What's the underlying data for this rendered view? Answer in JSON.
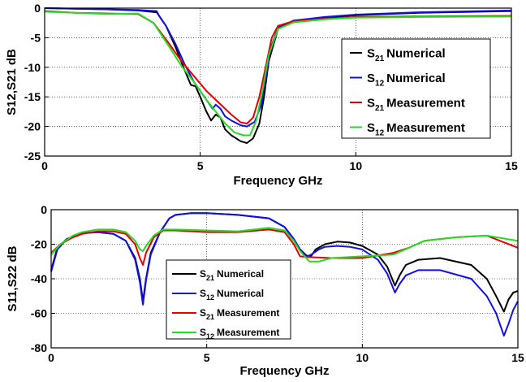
{
  "chart_data": [
    {
      "type": "line",
      "xlabel": "Frequency GHz",
      "ylabel": "S12,S21 dB",
      "xlim": [
        0,
        15
      ],
      "ylim": [
        -25,
        0
      ],
      "xticks": [
        "0",
        "5",
        "10",
        "15"
      ],
      "yticks": [
        "0",
        "-5",
        "-10",
        "-15",
        "-20",
        "-25"
      ],
      "grid": "on",
      "legend_placement": "right",
      "series": [
        {
          "name_main": "S",
          "name_sub": "21",
          "name_rest": "Numerical",
          "color": "#000000",
          "x": [
            0,
            1,
            2,
            3,
            3.6,
            3.9,
            4.2,
            4.5,
            4.7,
            4.85,
            5.0,
            5.2,
            5.35,
            5.5,
            5.65,
            5.8,
            6.0,
            6.3,
            6.5,
            6.7,
            6.9,
            7.05,
            7.2,
            7.5,
            8,
            9,
            10,
            12,
            15
          ],
          "y": [
            0,
            -0.1,
            -0.2,
            -0.4,
            -0.7,
            -3,
            -6.5,
            -10.5,
            -13,
            -13.2,
            -15,
            -17.5,
            -19,
            -18,
            -18.5,
            -20.5,
            -21.5,
            -22.5,
            -22.8,
            -22,
            -19.5,
            -15,
            -9,
            -3.5,
            -2.3,
            -1.6,
            -1.2,
            -0.8,
            -0.5
          ]
        },
        {
          "name_main": "S",
          "name_sub": "12",
          "name_rest": "Numerical",
          "color": "#1010e6",
          "x": [
            0,
            1,
            2,
            3,
            3.6,
            3.7,
            3.9,
            4.2,
            4.5,
            4.8,
            5.0,
            5.2,
            5.4,
            5.5,
            5.65,
            5.8,
            6.0,
            6.3,
            6.5,
            6.75,
            6.95,
            7.1,
            7.25,
            7.5,
            8,
            9,
            10,
            12,
            15
          ],
          "y": [
            0,
            -0.1,
            -0.2,
            -0.3,
            -0.5,
            -1.5,
            -3,
            -6,
            -9.5,
            -12.5,
            -14,
            -15.5,
            -17,
            -16.3,
            -17,
            -18.3,
            -19,
            -19.8,
            -20,
            -19.2,
            -16.5,
            -12,
            -7,
            -3.3,
            -2.1,
            -1.5,
            -1.1,
            -0.7,
            -0.4
          ]
        },
        {
          "name_main": "S",
          "name_sub": "21",
          "name_rest": "Measurement",
          "color": "#e60000",
          "x": [
            0,
            1,
            2,
            3,
            3.5,
            4,
            4.4,
            4.8,
            5.2,
            5.6,
            6,
            6.3,
            6.5,
            6.7,
            6.9,
            7.1,
            7.3,
            7.5,
            8,
            9,
            10,
            12,
            15
          ],
          "y": [
            -0.5,
            -0.8,
            -0.9,
            -1,
            -2.5,
            -6,
            -9,
            -11.5,
            -14,
            -16,
            -18,
            -19.3,
            -19.5,
            -18.5,
            -15,
            -10,
            -5,
            -3,
            -2.2,
            -1.8,
            -1.5,
            -1.4,
            -1.3
          ]
        },
        {
          "name_main": "S",
          "name_sub": "12",
          "name_rest": "Measurement",
          "color": "#22dd22",
          "x": [
            0,
            1,
            2,
            3,
            3.5,
            4,
            4.4,
            4.8,
            5.2,
            5.5,
            5.8,
            6.1,
            6.4,
            6.6,
            6.8,
            7.0,
            7.2,
            7.5,
            8,
            9,
            10,
            12,
            15
          ],
          "y": [
            -0.6,
            -0.8,
            -1,
            -0.9,
            -2.5,
            -6.5,
            -9.8,
            -12.5,
            -15.5,
            -17.5,
            -19.5,
            -21,
            -21.5,
            -21.5,
            -19,
            -14,
            -8,
            -3.5,
            -2.4,
            -1.9,
            -1.6,
            -1.5,
            -1.4
          ]
        }
      ]
    },
    {
      "type": "line",
      "xlabel": "Frequency GHz",
      "ylabel": "S11,S22 dB",
      "xlim": [
        0,
        15
      ],
      "ylim": [
        -80,
        0
      ],
      "xticks": [
        "0",
        "5",
        "10",
        "15"
      ],
      "yticks": [
        "0",
        "-20",
        "-40",
        "-60",
        "-80"
      ],
      "grid": "on",
      "legend_placement": "left",
      "series": [
        {
          "name_main": "S",
          "name_sub": "21",
          "name_rest": "Numerical",
          "color": "#000000",
          "x": [
            0,
            0.2,
            0.5,
            1,
            1.5,
            2,
            2.4,
            2.7,
            2.85,
            2.95,
            3.05,
            3.2,
            3.5,
            3.8,
            4,
            4.5,
            5,
            6,
            7,
            7.5,
            7.8,
            8,
            8.2,
            8.35,
            8.5,
            8.8,
            9.2,
            9.6,
            10,
            10.5,
            10.8,
            11.05,
            11.2,
            11.4,
            11.8,
            12.5,
            13.5,
            14,
            14.3,
            14.55,
            14.7,
            14.85,
            15
          ],
          "y": [
            -35,
            -22,
            -17,
            -13.5,
            -13,
            -14,
            -18,
            -28,
            -40,
            -53,
            -40,
            -25,
            -13,
            -5,
            -3,
            -2,
            -2,
            -3,
            -5,
            -10,
            -17,
            -23,
            -26.5,
            -27,
            -23,
            -20,
            -18.5,
            -19,
            -21,
            -26,
            -33,
            -44,
            -38,
            -32,
            -29,
            -28,
            -32,
            -40,
            -50,
            -59,
            -52,
            -48,
            -47
          ]
        },
        {
          "name_main": "S",
          "name_sub": "12",
          "name_rest": "Numerical",
          "color": "#1010e6",
          "x": [
            0,
            0.2,
            0.5,
            1,
            1.5,
            2,
            2.4,
            2.7,
            2.85,
            2.95,
            3.05,
            3.2,
            3.5,
            3.8,
            4,
            4.5,
            5,
            6,
            7,
            7.5,
            7.8,
            8,
            8.2,
            8.4,
            8.6,
            8.8,
            9.2,
            9.6,
            10,
            10.5,
            10.8,
            11.05,
            11.2,
            11.4,
            11.8,
            12.5,
            13.5,
            14,
            14.3,
            14.55,
            14.7,
            14.85,
            15
          ],
          "y": [
            -36,
            -23,
            -17,
            -13.5,
            -13,
            -14,
            -18,
            -29,
            -42,
            -55,
            -41,
            -26,
            -13,
            -5,
            -3,
            -2,
            -2,
            -3,
            -5,
            -10,
            -17,
            -23,
            -27.5,
            -25.5,
            -23,
            -21.5,
            -21,
            -21.5,
            -23,
            -29,
            -37,
            -48,
            -43,
            -38,
            -35,
            -35,
            -40,
            -50,
            -60,
            -73,
            -66,
            -58,
            -53
          ]
        },
        {
          "name_main": "S",
          "name_sub": "21",
          "name_rest": "Measurement",
          "color": "#e60000",
          "x": [
            0,
            0.3,
            0.7,
            1,
            1.5,
            2,
            2.4,
            2.7,
            2.85,
            2.95,
            3.05,
            3.3,
            3.6,
            4,
            5,
            6,
            7,
            7.5,
            7.8,
            8,
            8.3,
            9,
            10,
            11,
            11.5,
            12,
            13,
            14,
            15
          ],
          "y": [
            -25,
            -20,
            -16,
            -14,
            -12.5,
            -12.5,
            -14,
            -20,
            -28,
            -32,
            -25,
            -16,
            -12,
            -12,
            -13,
            -13,
            -11.5,
            -13,
            -20,
            -27,
            -27.5,
            -28,
            -28,
            -25,
            -22,
            -18,
            -16,
            -15,
            -22
          ]
        },
        {
          "name_main": "S",
          "name_sub": "12",
          "name_rest": "Measurement",
          "color": "#22dd22",
          "x": [
            0,
            0.3,
            0.7,
            1,
            1.5,
            2,
            2.4,
            2.7,
            2.85,
            2.95,
            3.05,
            3.3,
            3.6,
            4,
            5,
            6,
            7,
            7.5,
            7.8,
            8,
            8.3,
            8.6,
            9,
            10,
            11,
            11.5,
            12,
            13,
            14,
            15
          ],
          "y": [
            -26,
            -20,
            -15,
            -13,
            -11.5,
            -11.5,
            -13,
            -18,
            -23,
            -24,
            -21,
            -15,
            -11.5,
            -11.5,
            -12,
            -12.5,
            -10.5,
            -12,
            -18,
            -24,
            -30,
            -30,
            -28,
            -27,
            -26,
            -22,
            -18,
            -16,
            -15,
            -18
          ]
        }
      ]
    }
  ]
}
